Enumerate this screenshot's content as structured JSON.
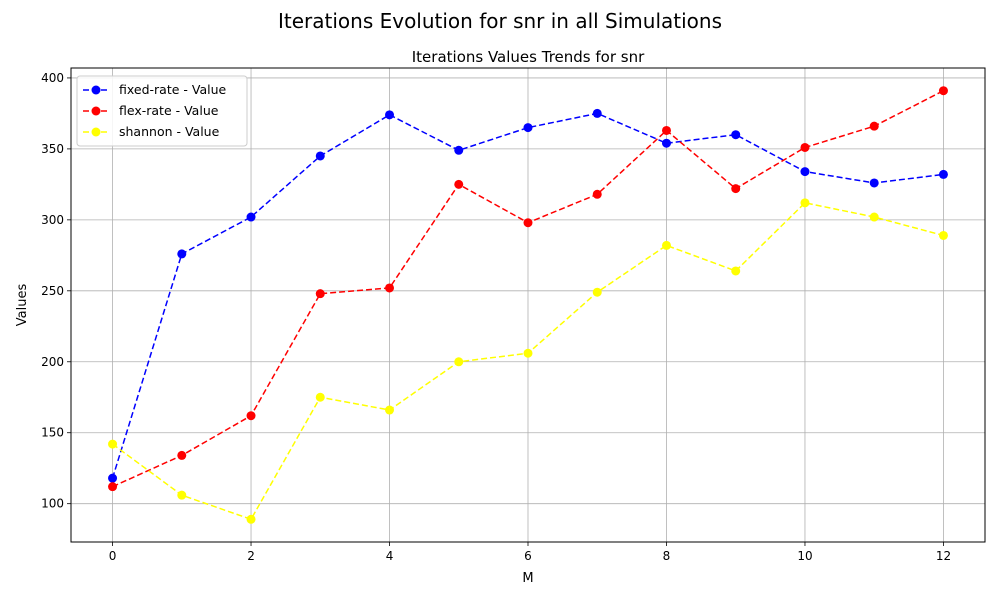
{
  "suptitle": "Iterations Evolution for snr in all Simulations",
  "chart_data": {
    "type": "line",
    "title": "Iterations Values Trends for snr",
    "xlabel": "M",
    "ylabel": "Values",
    "xlim": [
      -0.6,
      12.6
    ],
    "ylim": [
      73,
      407
    ],
    "xticks": [
      0,
      2,
      4,
      6,
      8,
      10,
      12
    ],
    "yticks": [
      100,
      150,
      200,
      250,
      300,
      350,
      400
    ],
    "grid": true,
    "legend_position": "upper-left",
    "x": [
      0,
      1,
      2,
      3,
      4,
      5,
      6,
      7,
      8,
      9,
      10,
      11,
      12
    ],
    "series": [
      {
        "name": "fixed-rate - Value",
        "color": "#0000ff",
        "values": [
          118,
          276,
          302,
          345,
          374,
          349,
          365,
          375,
          354,
          360,
          334,
          326,
          332
        ]
      },
      {
        "name": "flex-rate - Value",
        "color": "#ff0000",
        "values": [
          112,
          134,
          162,
          248,
          252,
          325,
          298,
          318,
          363,
          322,
          351,
          366,
          391
        ]
      },
      {
        "name": "shannon - Value",
        "color": "#ffff00",
        "values": [
          142,
          106,
          89,
          175,
          166,
          200,
          206,
          249,
          282,
          264,
          312,
          302,
          289
        ]
      }
    ]
  }
}
